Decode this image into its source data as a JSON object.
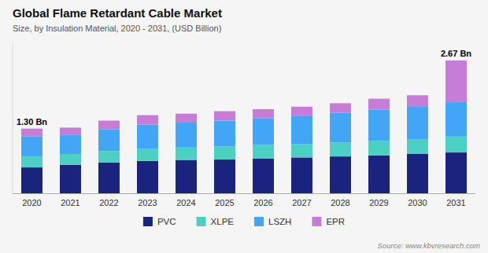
{
  "chart_data": {
    "type": "bar",
    "stacked": true,
    "title": "Global Flame Retardant Cable Market",
    "subtitle": "Size, by Insulation Material, 2020 - 2031, (USD Billion)",
    "source": "Source: www.kbvresearch.com",
    "categories": [
      "2020",
      "2021",
      "2022",
      "2023",
      "2024",
      "2025",
      "2026",
      "2027",
      "2028",
      "2029",
      "2030",
      "2031"
    ],
    "series": [
      {
        "name": "PVC",
        "color": "#1a237e",
        "values": [
          0.52,
          0.57,
          0.62,
          0.65,
          0.67,
          0.68,
          0.7,
          0.72,
          0.74,
          0.76,
          0.79,
          0.82
        ]
      },
      {
        "name": "XLPE",
        "color": "#4dd0c4",
        "values": [
          0.22,
          0.22,
          0.23,
          0.25,
          0.25,
          0.26,
          0.27,
          0.27,
          0.28,
          0.29,
          0.3,
          0.32
        ]
      },
      {
        "name": "LSZH",
        "color": "#42a5f5",
        "values": [
          0.4,
          0.38,
          0.44,
          0.48,
          0.5,
          0.52,
          0.54,
          0.57,
          0.6,
          0.63,
          0.66,
          0.69
        ]
      },
      {
        "name": "EPR",
        "color": "#c77dd7",
        "values": [
          0.16,
          0.15,
          0.17,
          0.19,
          0.18,
          0.19,
          0.18,
          0.18,
          0.19,
          0.22,
          0.22,
          0.84
        ]
      }
    ],
    "annotations": [
      {
        "text": "1.30 Bn",
        "x": "2020",
        "y": 1.3
      },
      {
        "text": "2.67 Bn",
        "x": "2031",
        "y": 2.67
      }
    ],
    "ylim": [
      0,
      3.0
    ],
    "tick_labels": "x",
    "grid": false,
    "legend": "bottom"
  }
}
